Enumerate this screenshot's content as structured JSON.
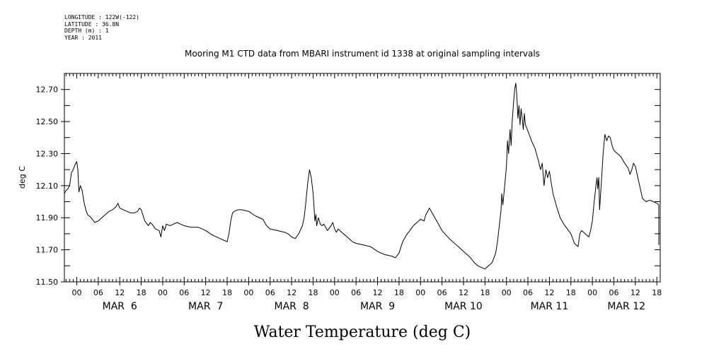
{
  "header_meta": {
    "longitude": "LONGITUDE : 122W(-122)",
    "latitude": "LATITUDE : 36.8N",
    "depth": "DEPTH (m) : 1",
    "year": "YEAR : 2011"
  },
  "chart_data": {
    "type": "line",
    "title": "Mooring M1 CTD data from MBARI instrument id 1338 at original sampling intervals",
    "xlabel": "Water Temperature (deg C)",
    "ylabel": "deg C",
    "ylim": [
      11.5,
      12.8
    ],
    "yticks": [
      "11.50",
      "11.70",
      "11.90",
      "12.10",
      "12.30",
      "12.50",
      "12.70"
    ],
    "xlim": [
      -3.5,
      163
    ],
    "hour_ticks": [
      {
        "x": 0,
        "label": "00"
      },
      {
        "x": 6,
        "label": "06"
      },
      {
        "x": 12,
        "label": "12"
      },
      {
        "x": 18,
        "label": "18"
      },
      {
        "x": 24,
        "label": "00"
      },
      {
        "x": 30,
        "label": "06"
      },
      {
        "x": 36,
        "label": "12"
      },
      {
        "x": 42,
        "label": "18"
      },
      {
        "x": 48,
        "label": "00"
      },
      {
        "x": 54,
        "label": "06"
      },
      {
        "x": 60,
        "label": "12"
      },
      {
        "x": 66,
        "label": "18"
      },
      {
        "x": 72,
        "label": "00"
      },
      {
        "x": 78,
        "label": "06"
      },
      {
        "x": 84,
        "label": "12"
      },
      {
        "x": 90,
        "label": "18"
      },
      {
        "x": 96,
        "label": "00"
      },
      {
        "x": 102,
        "label": "06"
      },
      {
        "x": 108,
        "label": "12"
      },
      {
        "x": 114,
        "label": "18"
      },
      {
        "x": 120,
        "label": "00"
      },
      {
        "x": 126,
        "label": "06"
      },
      {
        "x": 132,
        "label": "12"
      },
      {
        "x": 138,
        "label": "18"
      },
      {
        "x": 144,
        "label": "00"
      },
      {
        "x": 150,
        "label": "06"
      },
      {
        "x": 156,
        "label": "12"
      },
      {
        "x": 162,
        "label": "18"
      }
    ],
    "month_labels": [
      {
        "x": 12,
        "label": "MAR  6"
      },
      {
        "x": 36,
        "label": "MAR  7"
      },
      {
        "x": 60,
        "label": "MAR  8"
      },
      {
        "x": 84,
        "label": "MAR  9"
      },
      {
        "x": 108,
        "label": "MAR 10"
      },
      {
        "x": 132,
        "label": "MAR 11"
      },
      {
        "x": 153.5,
        "label": "MAR 12"
      }
    ],
    "grid": false,
    "series": [
      {
        "points": [
          [
            -3.5,
            12.05
          ],
          [
            -3,
            12.07
          ],
          [
            -2.5,
            12.08
          ],
          [
            -2,
            12.1
          ],
          [
            -1.5,
            12.18
          ],
          [
            -1,
            12.2
          ],
          [
            -0.5,
            12.23
          ],
          [
            0,
            12.25
          ],
          [
            0.3,
            12.2
          ],
          [
            0.6,
            12.06
          ],
          [
            1,
            12.1
          ],
          [
            1.5,
            12.07
          ],
          [
            2,
            12.0
          ],
          [
            2.5,
            11.95
          ],
          [
            3,
            11.92
          ],
          [
            4,
            11.9
          ],
          [
            5,
            11.87
          ],
          [
            6,
            11.88
          ],
          [
            7,
            11.9
          ],
          [
            8,
            11.92
          ],
          [
            9,
            11.94
          ],
          [
            10,
            11.95
          ],
          [
            11,
            11.97
          ],
          [
            11.5,
            11.99
          ],
          [
            12,
            11.96
          ],
          [
            13,
            11.95
          ],
          [
            14,
            11.94
          ],
          [
            15,
            11.93
          ],
          [
            16,
            11.93
          ],
          [
            17,
            11.94
          ],
          [
            17.5,
            11.96
          ],
          [
            18,
            11.95
          ],
          [
            19,
            11.88
          ],
          [
            20,
            11.85
          ],
          [
            20.5,
            11.87
          ],
          [
            21,
            11.86
          ],
          [
            22,
            11.83
          ],
          [
            23,
            11.82
          ],
          [
            23.5,
            11.78
          ],
          [
            24,
            11.85
          ],
          [
            24.5,
            11.82
          ],
          [
            25,
            11.86
          ],
          [
            26,
            11.85
          ],
          [
            27,
            11.86
          ],
          [
            28,
            11.87
          ],
          [
            29,
            11.86
          ],
          [
            30,
            11.85
          ],
          [
            32,
            11.84
          ],
          [
            34,
            11.84
          ],
          [
            36,
            11.82
          ],
          [
            38,
            11.79
          ],
          [
            40,
            11.77
          ],
          [
            41,
            11.76
          ],
          [
            42,
            11.75
          ],
          [
            42.5,
            11.8
          ],
          [
            43,
            11.88
          ],
          [
            43.5,
            11.93
          ],
          [
            44,
            11.94
          ],
          [
            45,
            11.95
          ],
          [
            46,
            11.95
          ],
          [
            48,
            11.94
          ],
          [
            50,
            11.91
          ],
          [
            52,
            11.89
          ],
          [
            53,
            11.85
          ],
          [
            54,
            11.83
          ],
          [
            56,
            11.82
          ],
          [
            58,
            11.81
          ],
          [
            59,
            11.8
          ],
          [
            60,
            11.78
          ],
          [
            61,
            11.77
          ],
          [
            62,
            11.8
          ],
          [
            63,
            11.85
          ],
          [
            63.5,
            11.9
          ],
          [
            64,
            12.0
          ],
          [
            64.5,
            12.12
          ],
          [
            65,
            12.2
          ],
          [
            65.5,
            12.15
          ],
          [
            66,
            12.05
          ],
          [
            66.3,
            11.95
          ],
          [
            66.5,
            11.88
          ],
          [
            66.8,
            11.92
          ],
          [
            67,
            11.85
          ],
          [
            67.5,
            11.9
          ],
          [
            68,
            11.86
          ],
          [
            68.5,
            11.85
          ],
          [
            69,
            11.86
          ],
          [
            69.5,
            11.84
          ],
          [
            70,
            11.82
          ],
          [
            71,
            11.85
          ],
          [
            71.5,
            11.87
          ],
          [
            72,
            11.83
          ],
          [
            72.5,
            11.81
          ],
          [
            73,
            11.83
          ],
          [
            74,
            11.81
          ],
          [
            75,
            11.79
          ],
          [
            76,
            11.77
          ],
          [
            77,
            11.75
          ],
          [
            78,
            11.74
          ],
          [
            80,
            11.73
          ],
          [
            82,
            11.72
          ],
          [
            84,
            11.69
          ],
          [
            86,
            11.67
          ],
          [
            88,
            11.66
          ],
          [
            89,
            11.65
          ],
          [
            90,
            11.68
          ],
          [
            91,
            11.75
          ],
          [
            92,
            11.79
          ],
          [
            93,
            11.82
          ],
          [
            94,
            11.85
          ],
          [
            95,
            11.87
          ],
          [
            96,
            11.89
          ],
          [
            97,
            11.88
          ],
          [
            97.5,
            11.92
          ],
          [
            98,
            11.94
          ],
          [
            98.5,
            11.96
          ],
          [
            99,
            11.94
          ],
          [
            100,
            11.9
          ],
          [
            101,
            11.86
          ],
          [
            102,
            11.82
          ],
          [
            104,
            11.77
          ],
          [
            106,
            11.73
          ],
          [
            108,
            11.69
          ],
          [
            110,
            11.65
          ],
          [
            111,
            11.62
          ],
          [
            112,
            11.6
          ],
          [
            113,
            11.59
          ],
          [
            114,
            11.58
          ],
          [
            115,
            11.6
          ],
          [
            116,
            11.62
          ],
          [
            117,
            11.68
          ],
          [
            117.5,
            11.75
          ],
          [
            118,
            11.85
          ],
          [
            118.5,
            11.95
          ],
          [
            118.7,
            12.05
          ],
          [
            119,
            11.98
          ],
          [
            119.5,
            12.1
          ],
          [
            120,
            12.22
          ],
          [
            120.3,
            12.38
          ],
          [
            120.6,
            12.3
          ],
          [
            121,
            12.45
          ],
          [
            121.3,
            12.35
          ],
          [
            121.6,
            12.5
          ],
          [
            122,
            12.62
          ],
          [
            122.3,
            12.7
          ],
          [
            122.6,
            12.74
          ],
          [
            122.9,
            12.66
          ],
          [
            123.2,
            12.52
          ],
          [
            123.5,
            12.6
          ],
          [
            123.8,
            12.48
          ],
          [
            124.1,
            12.58
          ],
          [
            124.4,
            12.52
          ],
          [
            124.7,
            12.45
          ],
          [
            125,
            12.55
          ],
          [
            125.3,
            12.48
          ],
          [
            126,
            12.44
          ],
          [
            127,
            12.38
          ],
          [
            128,
            12.33
          ],
          [
            129,
            12.25
          ],
          [
            129.5,
            12.2
          ],
          [
            130,
            12.24
          ],
          [
            130.5,
            12.1
          ],
          [
            131,
            12.2
          ],
          [
            131.5,
            12.15
          ],
          [
            132,
            12.19
          ],
          [
            132.5,
            12.12
          ],
          [
            133,
            12.05
          ],
          [
            134,
            11.97
          ],
          [
            135,
            11.9
          ],
          [
            136,
            11.86
          ],
          [
            137,
            11.83
          ],
          [
            138,
            11.8
          ],
          [
            139,
            11.74
          ],
          [
            140,
            11.72
          ],
          [
            140.5,
            11.8
          ],
          [
            141,
            11.82
          ],
          [
            142,
            11.8
          ],
          [
            143,
            11.78
          ],
          [
            143.5,
            11.82
          ],
          [
            144,
            11.88
          ],
          [
            144.5,
            12.0
          ],
          [
            145,
            12.1
          ],
          [
            145.3,
            12.15
          ],
          [
            145.5,
            12.08
          ],
          [
            145.8,
            12.15
          ],
          [
            146,
            11.95
          ],
          [
            146.5,
            12.12
          ],
          [
            147,
            12.3
          ],
          [
            147.5,
            12.42
          ],
          [
            148,
            12.38
          ],
          [
            148.5,
            12.41
          ],
          [
            149,
            12.4
          ],
          [
            149.5,
            12.35
          ],
          [
            150,
            12.32
          ],
          [
            151,
            12.3
          ],
          [
            152,
            12.28
          ],
          [
            153,
            12.24
          ],
          [
            154,
            12.21
          ],
          [
            154.5,
            12.17
          ],
          [
            155,
            12.2
          ],
          [
            155.5,
            12.24
          ],
          [
            156,
            12.22
          ],
          [
            157,
            12.12
          ],
          [
            158,
            12.02
          ],
          [
            159,
            12.0
          ],
          [
            160,
            12.01
          ],
          [
            161,
            12.0
          ],
          [
            162,
            11.99
          ],
          [
            163,
            11.98
          ],
          [
            164,
            11.97
          ],
          [
            165,
            11.96
          ],
          [
            166,
            11.94
          ],
          [
            167,
            11.92
          ],
          [
            168,
            11.9
          ],
          [
            169,
            11.87
          ],
          [
            170,
            11.8
          ],
          [
            170.5,
            11.73
          ]
        ]
      }
    ]
  }
}
